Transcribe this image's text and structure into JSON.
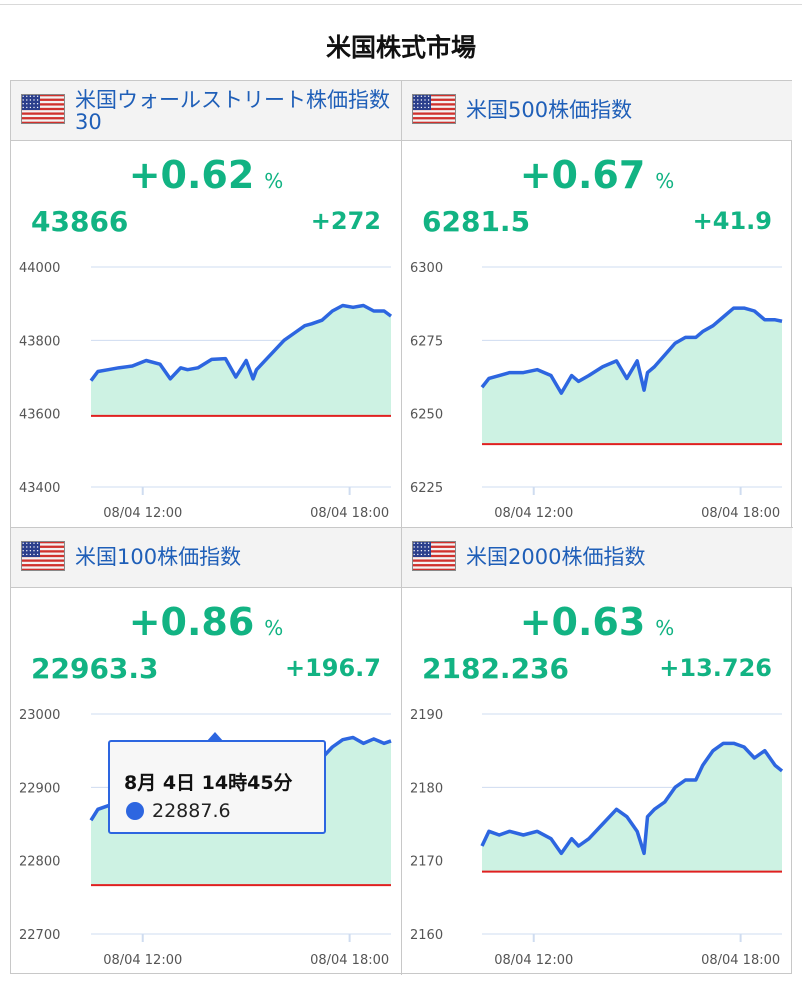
{
  "page": {
    "title": "米国株式市場"
  },
  "colors": {
    "up": "#12b383",
    "line": "#2d66e0",
    "area": "#cdf2e3",
    "baseline": "#e02020",
    "title": "#1f5fb8"
  },
  "panels": [
    {
      "title": "米国ウォールストリート株価指数30",
      "icon": "us-flag-icon",
      "change_pct": "+0.62",
      "pct_sign": "%",
      "price": "43866",
      "change": "+272"
    },
    {
      "title": "米国500株価指数",
      "icon": "us-flag-icon",
      "change_pct": "+0.67",
      "pct_sign": "%",
      "price": "6281.5",
      "change": "+41.9"
    },
    {
      "title": "米国100株価指数",
      "icon": "us-flag-icon",
      "change_pct": "+0.86",
      "pct_sign": "%",
      "price": "22963.3",
      "change": "+196.7"
    },
    {
      "title": "米国2000株価指数",
      "icon": "us-flag-icon",
      "change_pct": "+0.63",
      "pct_sign": "%",
      "price": "2182.236",
      "change": "+13.726"
    }
  ],
  "tooltip": {
    "time": "8月 4日 14時45分",
    "value": "22887.6"
  },
  "chart_data": [
    {
      "type": "area",
      "title": "米国ウォールストリート株価指数30",
      "x_ticks": [
        "08/04 12:00",
        "08/04 18:00"
      ],
      "y_ticks": [
        44000,
        43800,
        43600,
        43400
      ],
      "ylim": [
        43400,
        44000
      ],
      "xlim": [
        10.5,
        19.2
      ],
      "previous_close": 43594,
      "series": [
        {
          "x": [
            10.5,
            10.7,
            11.0,
            11.3,
            11.7,
            12.1,
            12.5,
            12.8,
            13.1,
            13.3,
            13.6,
            14.0,
            14.4,
            14.7,
            15.0,
            15.2,
            15.3,
            15.5,
            15.8,
            16.1,
            16.4,
            16.7,
            16.9,
            17.2,
            17.5,
            17.8,
            18.1,
            18.4,
            18.7,
            19.0,
            19.2
          ],
          "y": [
            43690,
            43715,
            43720,
            43725,
            43730,
            43745,
            43735,
            43695,
            43725,
            43720,
            43725,
            43748,
            43750,
            43700,
            43745,
            43695,
            43720,
            43740,
            43770,
            43800,
            43820,
            43840,
            43845,
            43855,
            43880,
            43895,
            43890,
            43895,
            43880,
            43880,
            43866
          ]
        }
      ]
    },
    {
      "type": "area",
      "title": "米国500株価指数",
      "x_ticks": [
        "08/04 12:00",
        "08/04 18:00"
      ],
      "y_ticks": [
        6300,
        6275,
        6250,
        6225
      ],
      "ylim": [
        6225,
        6300
      ],
      "xlim": [
        10.5,
        19.2
      ],
      "previous_close": 6239.6,
      "series": [
        {
          "x": [
            10.5,
            10.7,
            11.0,
            11.3,
            11.7,
            12.1,
            12.5,
            12.8,
            13.1,
            13.3,
            13.6,
            14.0,
            14.4,
            14.7,
            15.0,
            15.2,
            15.3,
            15.5,
            15.8,
            16.1,
            16.4,
            16.7,
            16.9,
            17.2,
            17.5,
            17.8,
            18.1,
            18.4,
            18.7,
            19.0,
            19.2
          ],
          "y": [
            6259,
            6262,
            6263,
            6264,
            6264,
            6265,
            6263,
            6257,
            6263,
            6261,
            6263,
            6266,
            6268,
            6262,
            6268,
            6258,
            6264,
            6266,
            6270,
            6274,
            6276,
            6276,
            6278,
            6280,
            6283,
            6286,
            6286,
            6285,
            6282,
            6282,
            6281.5
          ]
        }
      ]
    },
    {
      "type": "area",
      "title": "米国100株価指数",
      "x_ticks": [
        "08/04 12:00",
        "08/04 18:00"
      ],
      "y_ticks": [
        23000,
        22900,
        22800,
        22700
      ],
      "ylim": [
        22700,
        23000
      ],
      "xlim": [
        10.5,
        19.2
      ],
      "previous_close": 22766.6,
      "series": [
        {
          "x": [
            10.5,
            10.7,
            11.0,
            11.3,
            11.7,
            12.1,
            12.5,
            12.8,
            13.1,
            13.3,
            13.6,
            14.0,
            14.4,
            14.75,
            15.0,
            15.2,
            15.3,
            15.5,
            15.8,
            16.1,
            16.4,
            16.7,
            16.9,
            17.2,
            17.5,
            17.8,
            18.1,
            18.4,
            18.7,
            19.0,
            19.2
          ],
          "y": [
            22855,
            22870,
            22875,
            22878,
            22877,
            22882,
            22888,
            22870,
            22880,
            22870,
            22875,
            22880,
            22885,
            22887.6,
            22880,
            22858,
            22875,
            22890,
            22910,
            22920,
            22925,
            22905,
            22930,
            22940,
            22955,
            22965,
            22968,
            22960,
            22966,
            22960,
            22963.3
          ]
        }
      ]
    },
    {
      "type": "area",
      "title": "米国2000株価指数",
      "x_ticks": [
        "08/04 12:00",
        "08/04 18:00"
      ],
      "y_ticks": [
        2190,
        2180,
        2170,
        2160
      ],
      "ylim": [
        2160,
        2190
      ],
      "xlim": [
        10.5,
        19.2
      ],
      "previous_close": 2168.5,
      "series": [
        {
          "x": [
            10.5,
            10.7,
            11.0,
            11.3,
            11.7,
            12.1,
            12.5,
            12.8,
            13.1,
            13.3,
            13.6,
            14.0,
            14.4,
            14.7,
            15.0,
            15.2,
            15.3,
            15.5,
            15.8,
            16.1,
            16.4,
            16.7,
            16.9,
            17.2,
            17.5,
            17.8,
            18.1,
            18.4,
            18.7,
            19.0,
            19.2
          ],
          "y": [
            2172,
            2174,
            2173.5,
            2174,
            2173.5,
            2174,
            2173,
            2171,
            2173,
            2172,
            2173,
            2175,
            2177,
            2176,
            2174,
            2171,
            2176,
            2177,
            2178,
            2180,
            2181,
            2181,
            2183,
            2185,
            2186,
            2186,
            2185.5,
            2184,
            2185,
            2183,
            2182.236
          ]
        }
      ]
    }
  ]
}
